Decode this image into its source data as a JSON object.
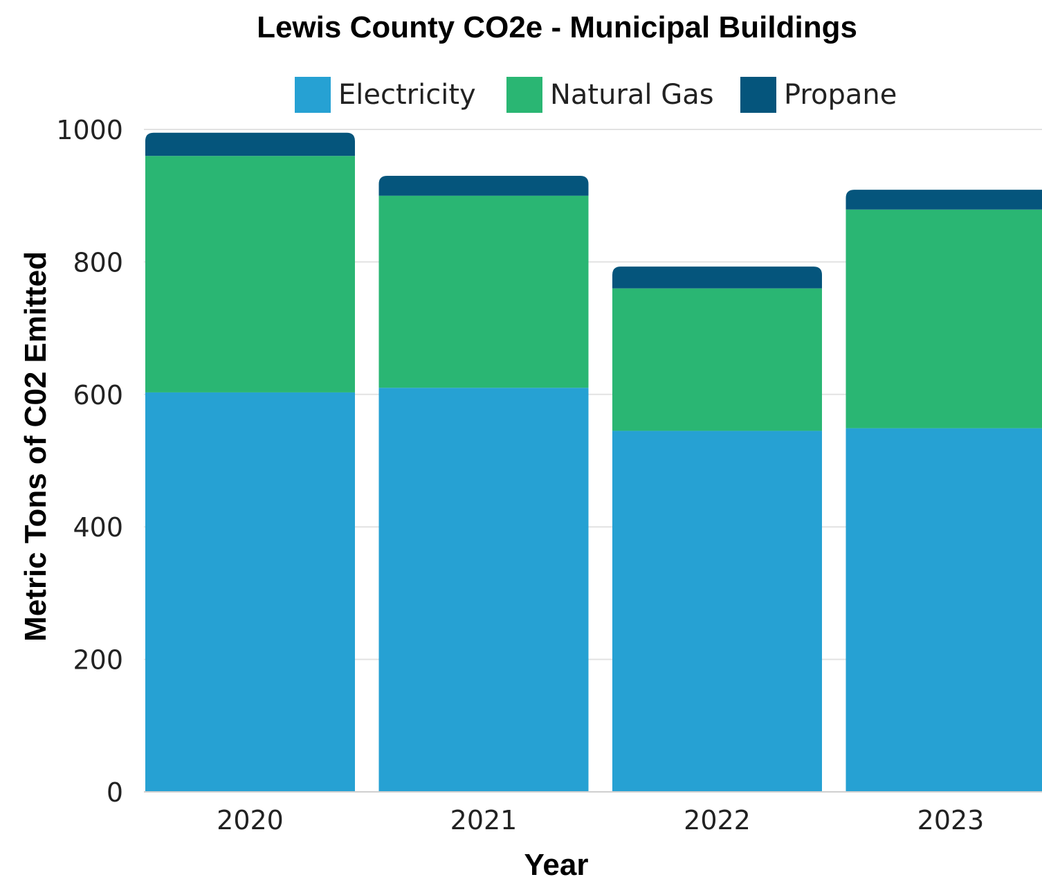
{
  "chart_data": {
    "type": "bar",
    "stacked": true,
    "title": "Lewis County CO2e - Municipal Buildings",
    "xlabel": "Year",
    "ylabel": "Metric Tons of C02 Emitted",
    "categories": [
      "2020",
      "2021",
      "2022",
      "2023"
    ],
    "series": [
      {
        "name": "Electricity",
        "color": "#26a1d3",
        "values": [
          603,
          610,
          545,
          549
        ]
      },
      {
        "name": "Natural Gas",
        "color": "#2ab673",
        "values": [
          357,
          290,
          215,
          330
        ]
      },
      {
        "name": "Propane",
        "color": "#05557c",
        "values": [
          35,
          30,
          33,
          30
        ]
      }
    ],
    "ylim": [
      0,
      1000
    ],
    "yticks": [
      0,
      200,
      400,
      600,
      800,
      1000
    ],
    "grid": true,
    "legend_position": "top"
  }
}
